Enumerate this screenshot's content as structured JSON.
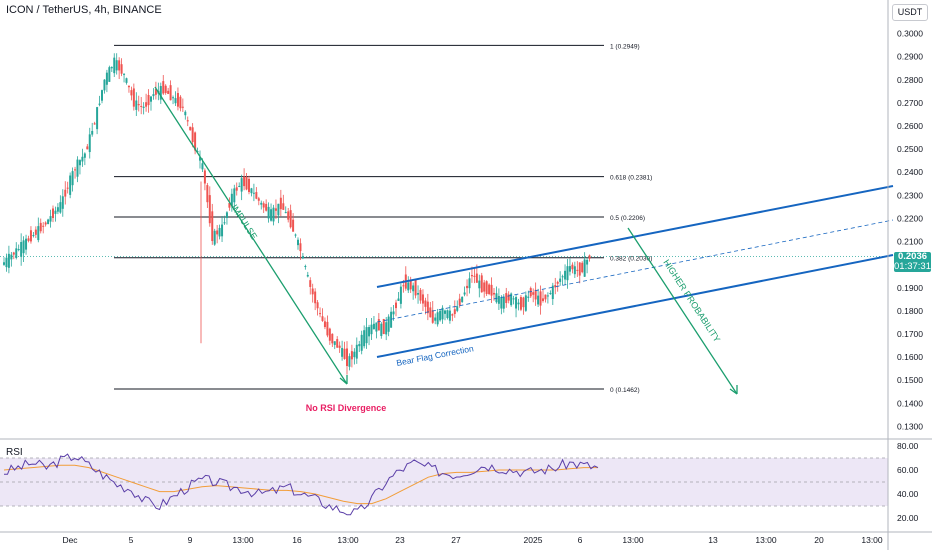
{
  "header": {
    "title": "ICON / TetherUS, 4h, BINANCE",
    "currency": "USDT",
    "last_price": "0.2036",
    "countdown": "01:37:31"
  },
  "colors": {
    "up": "#26a69a",
    "down": "#ef5350",
    "channel": "#1565c0",
    "arrow": "#1b9e6e",
    "fib": "#131722",
    "rsi": "#5b3fa8",
    "rsi_ma": "#f29d38",
    "rsi_band": "#ede7f6",
    "divergence_text": "#e91e63"
  },
  "chart_data": [
    {
      "type": "candlestick",
      "title": "ICON / TetherUS, 4h, BINANCE",
      "ylim": [
        0.125,
        0.305
      ],
      "y_ticks": [
        "0.3000",
        "0.2900",
        "0.2800",
        "0.2700",
        "0.2600",
        "0.2500",
        "0.2400",
        "0.2300",
        "0.2200",
        "0.2100",
        "0.2000",
        "0.1900",
        "0.1800",
        "0.1700",
        "0.1600",
        "0.1500",
        "0.1400",
        "0.1300"
      ],
      "x_ticks": [
        "Dec",
        "5",
        "9",
        "13:00",
        "16",
        "13:00",
        "23",
        "27",
        "2025",
        "6",
        "13:00",
        "13",
        "13:00",
        "20",
        "13:00"
      ],
      "series": [
        {
          "t": 0,
          "c": 0.2
        },
        {
          "t": 6,
          "c": 0.206
        },
        {
          "t": 12,
          "c": 0.212
        },
        {
          "t": 18,
          "c": 0.218
        },
        {
          "t": 24,
          "c": 0.226
        },
        {
          "t": 30,
          "c": 0.242
        },
        {
          "t": 34,
          "c": 0.248
        },
        {
          "t": 38,
          "c": 0.262
        },
        {
          "t": 42,
          "c": 0.28
        },
        {
          "t": 46,
          "c": 0.288
        },
        {
          "t": 50,
          "c": 0.282
        },
        {
          "t": 54,
          "c": 0.27
        },
        {
          "t": 58,
          "c": 0.268
        },
        {
          "t": 62,
          "c": 0.274
        },
        {
          "t": 66,
          "c": 0.276
        },
        {
          "t": 70,
          "c": 0.272
        },
        {
          "t": 74,
          "c": 0.268
        },
        {
          "t": 78,
          "c": 0.254
        },
        {
          "t": 82,
          "c": 0.242
        },
        {
          "t": 86,
          "c": 0.212
        },
        {
          "t": 90,
          "c": 0.216
        },
        {
          "t": 94,
          "c": 0.23
        },
        {
          "t": 98,
          "c": 0.236
        },
        {
          "t": 102,
          "c": 0.232
        },
        {
          "t": 106,
          "c": 0.226
        },
        {
          "t": 110,
          "c": 0.222
        },
        {
          "t": 114,
          "c": 0.226
        },
        {
          "t": 118,
          "c": 0.218
        },
        {
          "t": 122,
          "c": 0.206
        },
        {
          "t": 126,
          "c": 0.19
        },
        {
          "t": 130,
          "c": 0.178
        },
        {
          "t": 134,
          "c": 0.168
        },
        {
          "t": 138,
          "c": 0.164
        },
        {
          "t": 141,
          "c": 0.158
        },
        {
          "t": 144,
          "c": 0.162
        },
        {
          "t": 148,
          "c": 0.17
        },
        {
          "t": 152,
          "c": 0.174
        },
        {
          "t": 156,
          "c": 0.172
        },
        {
          "t": 160,
          "c": 0.18
        },
        {
          "t": 164,
          "c": 0.192
        },
        {
          "t": 168,
          "c": 0.19
        },
        {
          "t": 172,
          "c": 0.184
        },
        {
          "t": 176,
          "c": 0.176
        },
        {
          "t": 180,
          "c": 0.18
        },
        {
          "t": 184,
          "c": 0.178
        },
        {
          "t": 188,
          "c": 0.186
        },
        {
          "t": 192,
          "c": 0.196
        },
        {
          "t": 196,
          "c": 0.19
        },
        {
          "t": 200,
          "c": 0.188
        },
        {
          "t": 204,
          "c": 0.184
        },
        {
          "t": 208,
          "c": 0.186
        },
        {
          "t": 212,
          "c": 0.182
        },
        {
          "t": 216,
          "c": 0.188
        },
        {
          "t": 220,
          "c": 0.184
        },
        {
          "t": 224,
          "c": 0.188
        },
        {
          "t": 228,
          "c": 0.194
        },
        {
          "t": 232,
          "c": 0.199
        },
        {
          "t": 236,
          "c": 0.197
        },
        {
          "t": 240,
          "c": 0.2036
        }
      ],
      "fib_levels": [
        {
          "label": "1 (0.2949)",
          "value": 0.2949
        },
        {
          "label": "0.618 (0.2381)",
          "value": 0.2381
        },
        {
          "label": "0.5 (0.2206)",
          "value": 0.2206
        },
        {
          "label": "0.382 (0.2030)",
          "value": 0.203
        },
        {
          "label": "0 (0.1462)",
          "value": 0.1462
        }
      ],
      "annotations": {
        "impulse": "IMPULSE",
        "bear_flag": "Bear Flag Correction",
        "higher_probability": "HIGHER PROBABILITY",
        "no_divergence": "No RSI Divergence"
      }
    },
    {
      "type": "line",
      "title": "RSI",
      "ylim": [
        10,
        85
      ],
      "y_ticks": [
        "80.00",
        "60.00",
        "40.00",
        "20.00"
      ],
      "bands": [
        30,
        70
      ],
      "series": [
        {
          "name": "RSI",
          "values": [
            58,
            62,
            66,
            62,
            68,
            72,
            64,
            56,
            48,
            44,
            34,
            30,
            38,
            46,
            52,
            50,
            46,
            44,
            40,
            42,
            46,
            40,
            36,
            30,
            26,
            24,
            36,
            50,
            60,
            66,
            62,
            58,
            56,
            60,
            64,
            62,
            60,
            58,
            60,
            62,
            66,
            64,
            62
          ]
        },
        {
          "name": "RSI MA",
          "values": [
            60,
            61,
            62,
            63,
            64,
            64,
            62,
            58,
            54,
            50,
            46,
            42,
            42,
            44,
            46,
            47,
            46,
            45,
            44,
            43,
            43,
            42,
            40,
            37,
            34,
            32,
            32,
            36,
            42,
            48,
            54,
            57,
            58,
            58,
            59,
            60,
            60,
            60,
            60,
            60,
            61,
            62,
            62
          ]
        }
      ]
    }
  ]
}
